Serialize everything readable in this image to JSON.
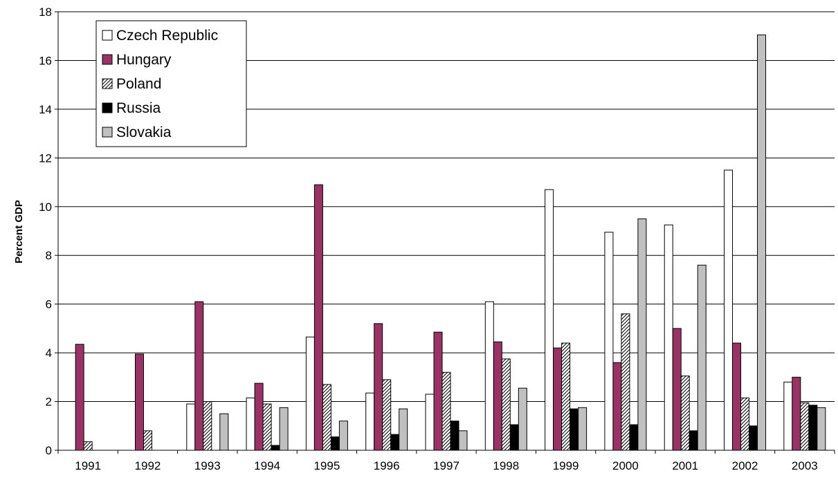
{
  "chart_data": {
    "type": "bar",
    "title": "",
    "xlabel": "",
    "ylabel": "Percent GDP",
    "ylim": [
      0,
      18
    ],
    "yticks": [
      "0",
      "2",
      "4",
      "6",
      "8",
      "10",
      "12",
      "14",
      "16",
      "18"
    ],
    "grid": true,
    "legend_position": "top-left",
    "categories": [
      "1991",
      "1992",
      "1993",
      "1994",
      "1995",
      "1996",
      "1997",
      "1998",
      "1999",
      "2000",
      "2001",
      "2002",
      "2003"
    ],
    "series": [
      {
        "name": "Czech Republic",
        "style": "white",
        "fill": "#ffffff",
        "values": [
          null,
          null,
          1.9,
          2.15,
          4.65,
          2.35,
          2.3,
          6.1,
          10.7,
          8.95,
          9.25,
          11.5,
          2.8
        ]
      },
      {
        "name": "Hungary",
        "style": "solid",
        "fill": "#993366",
        "values": [
          4.35,
          3.95,
          6.1,
          2.75,
          10.9,
          5.2,
          4.85,
          4.45,
          4.2,
          3.6,
          5.0,
          4.4,
          3.0
        ]
      },
      {
        "name": "Poland",
        "style": "hatched",
        "fill": "#ffffff",
        "values": [
          0.35,
          0.8,
          2.0,
          1.9,
          2.7,
          2.9,
          3.2,
          3.75,
          4.4,
          5.6,
          3.05,
          2.15,
          1.95
        ]
      },
      {
        "name": "Russia",
        "style": "solid",
        "fill": "#000000",
        "values": [
          null,
          null,
          null,
          0.2,
          0.55,
          0.65,
          1.2,
          1.05,
          1.7,
          1.05,
          0.8,
          1.0,
          1.85
        ]
      },
      {
        "name": "Slovakia",
        "style": "solid",
        "fill": "#c0c0c0",
        "values": [
          null,
          null,
          1.5,
          1.75,
          1.2,
          1.7,
          0.8,
          2.55,
          1.75,
          9.5,
          7.6,
          17.05,
          1.75
        ]
      }
    ]
  }
}
